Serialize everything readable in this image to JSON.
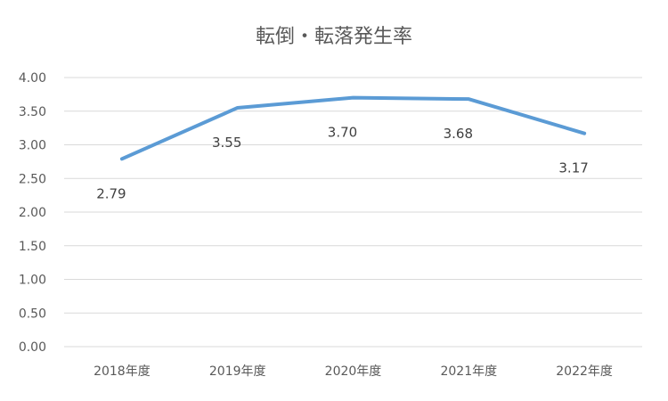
{
  "chart_data": {
    "type": "line",
    "title": "転倒・転落発生率",
    "categories": [
      "2018年度",
      "2019年度",
      "2020年度",
      "2021年度",
      "2022年度"
    ],
    "series": [
      {
        "values": [
          2.79,
          3.55,
          3.7,
          3.68,
          3.17
        ],
        "color": "#5b9bd5"
      }
    ],
    "data_labels": [
      "2.79",
      "3.55",
      "3.70",
      "3.68",
      "3.17"
    ],
    "y_ticks": [
      "0.00",
      "0.50",
      "1.00",
      "1.50",
      "2.00",
      "2.50",
      "3.00",
      "3.50",
      "4.00"
    ],
    "ylim": [
      0,
      4
    ],
    "grid": true,
    "legend": "none"
  }
}
